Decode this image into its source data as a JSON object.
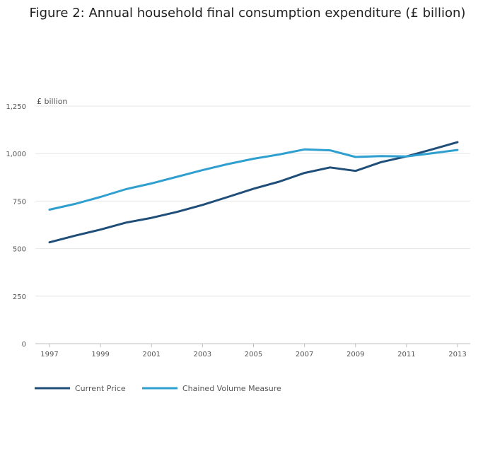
{
  "chart_data": {
    "type": "line",
    "title": "Figure 2: Annual household final consumption expenditure (£ billion)",
    "ylabel": "£ billion",
    "xlabel": "",
    "ylim": [
      0,
      1250
    ],
    "yticks": [
      0,
      250,
      500,
      750,
      1000,
      1250
    ],
    "ytick_labels": [
      "0",
      "250",
      "500",
      "750",
      "1,000",
      "1,250"
    ],
    "x": [
      1997,
      1998,
      1999,
      2000,
      2001,
      2002,
      2003,
      2004,
      2005,
      2006,
      2007,
      2008,
      2009,
      2010,
      2011,
      2012,
      2013
    ],
    "xtick_labels": [
      "1997",
      "1999",
      "2001",
      "2003",
      "2005",
      "2007",
      "2009",
      "2011",
      "2013"
    ],
    "grid": true,
    "legend_position": "bottom-left",
    "series": [
      {
        "name": "Current Price",
        "color": "#1f4e79",
        "values": [
          533,
          568,
          600,
          637,
          662,
          693,
          730,
          772,
          815,
          852,
          898,
          927,
          909,
          955,
          985,
          1022,
          1060
        ]
      },
      {
        "name": "Chained Volume Measure",
        "color": "#2e9fcf",
        "values": [
          705,
          735,
          772,
          813,
          843,
          878,
          913,
          945,
          973,
          995,
          1022,
          1017,
          982,
          987,
          985,
          1002,
          1019
        ]
      }
    ]
  }
}
